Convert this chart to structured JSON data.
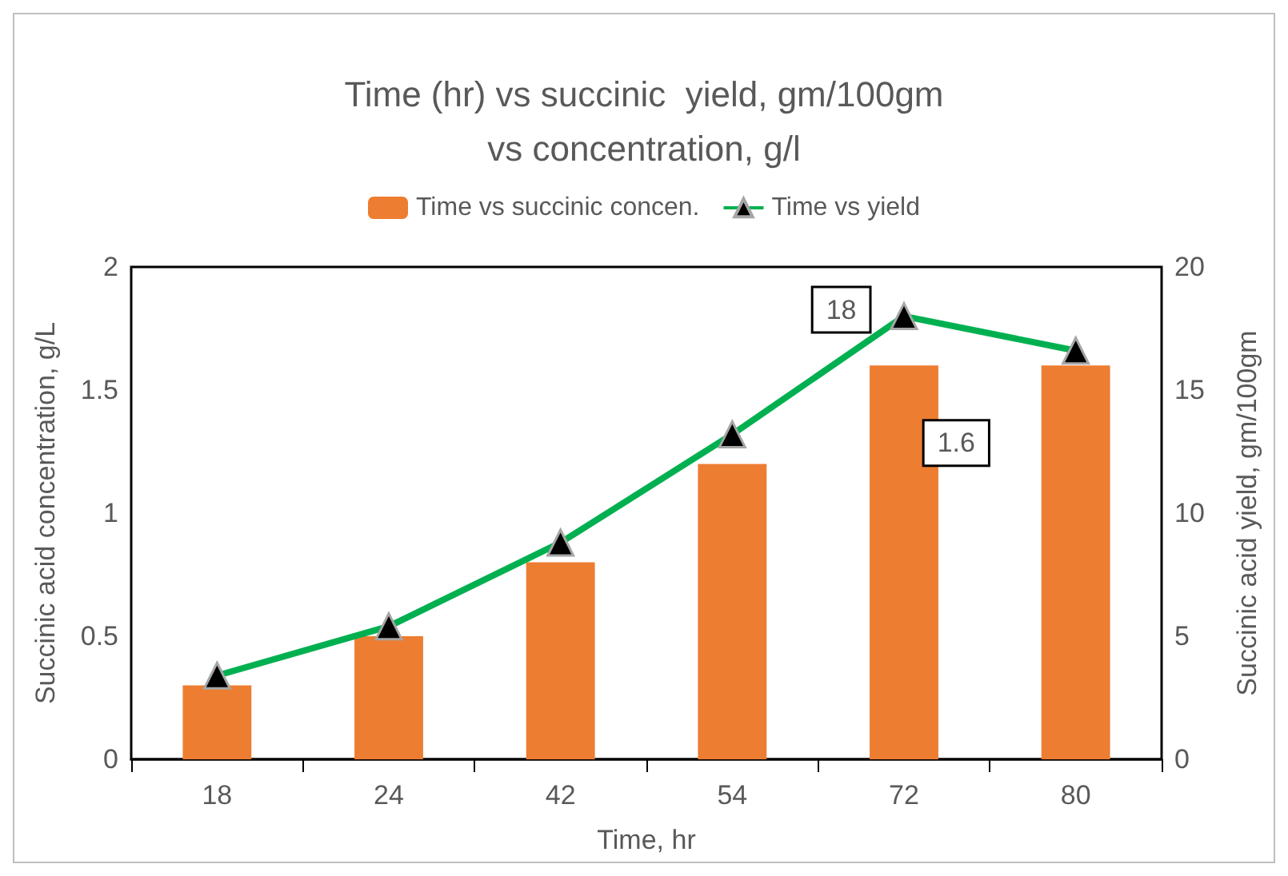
{
  "chart_data": {
    "type": "bar",
    "title": "Time (hr) vs succinic  yield, gm/100gm\nvs concentration, g/l",
    "xlabel": "Time, hr",
    "ylabel": "Succinic acid concentration, g/L",
    "y2label": "Succinic acid yield, gm/100gm",
    "categories": [
      "18",
      "24",
      "42",
      "54",
      "72",
      "80"
    ],
    "series": [
      {
        "name": "Time vs succinic concen.",
        "color": "#ed7d31",
        "values": [
          0.3,
          0.5,
          0.8,
          1.2,
          1.6,
          1.6
        ],
        "value_labels": [
          null,
          null,
          null,
          null,
          "1.6",
          null
        ]
      },
      {
        "name": "Time vs yield",
        "type": "line",
        "axis": "y2",
        "color": "#00b050",
        "marker": "triangle",
        "values": [
          3.4,
          5.4,
          8.8,
          13.2,
          18,
          16.6
        ],
        "value_labels": [
          null,
          null,
          null,
          null,
          "18",
          null
        ]
      }
    ],
    "ylim": [
      0,
      2
    ],
    "yticks": [
      0,
      0.5,
      1,
      1.5,
      2
    ],
    "y2lim": [
      0,
      20
    ],
    "y2ticks": [
      0,
      5,
      10,
      15,
      20
    ],
    "legend": "top",
    "grid": false
  }
}
